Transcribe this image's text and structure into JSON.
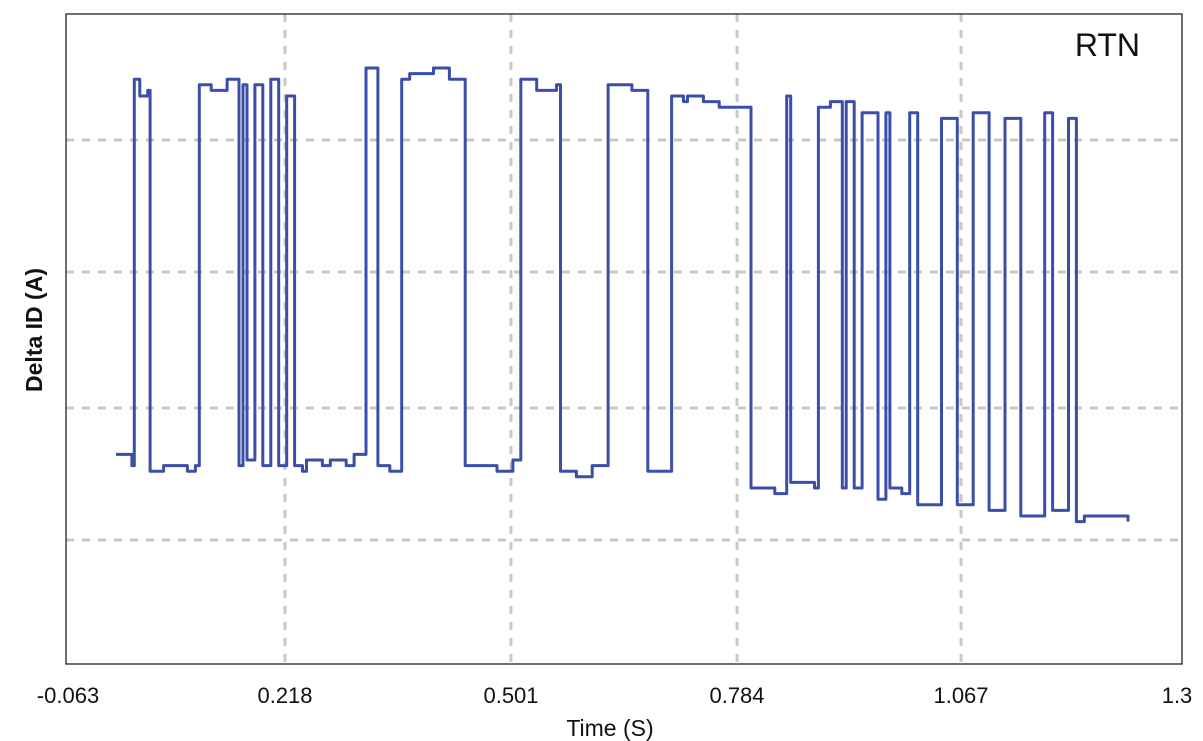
{
  "chart_data": {
    "type": "line",
    "title": "",
    "xlabel": "Time (S)",
    "ylabel": "Delta ID (A)",
    "annotation": "RTN",
    "x_tick_labels": [
      "-0.063",
      "0.218",
      "0.501",
      "0.784",
      "1.067",
      "1.3"
    ],
    "x_ticks": [
      -0.063,
      0.218,
      0.501,
      0.784,
      1.067,
      1.3
    ],
    "xlim": [
      -0.063,
      1.3
    ],
    "ylim": [
      0,
      1
    ],
    "grid": true,
    "legend": "none",
    "y_tick_labels": [],
    "series": [
      {
        "color": "#3c4fa8",
        "x": [
          0.0,
          0.02,
          0.023,
          0.03,
          0.04,
          0.043,
          0.06,
          0.09,
          0.1,
          0.105,
          0.12,
          0.14,
          0.155,
          0.16,
          0.165,
          0.175,
          0.185,
          0.195,
          0.205,
          0.215,
          0.225,
          0.235,
          0.24,
          0.26,
          0.27,
          0.29,
          0.3,
          0.315,
          0.33,
          0.345,
          0.36,
          0.37,
          0.4,
          0.42,
          0.44,
          0.48,
          0.5,
          0.51,
          0.53,
          0.555,
          0.56,
          0.58,
          0.6,
          0.62,
          0.65,
          0.67,
          0.7,
          0.715,
          0.72,
          0.74,
          0.76,
          0.8,
          0.83,
          0.845,
          0.85,
          0.88,
          0.885,
          0.9,
          0.915,
          0.92,
          0.93,
          0.94,
          0.96,
          0.97,
          0.975,
          0.99,
          1.0,
          1.01,
          1.04,
          1.06,
          1.08,
          1.1,
          1.12,
          1.14,
          1.17,
          1.18,
          1.2,
          1.21,
          1.22,
          1.25,
          1.275
        ],
        "y": [
          0.26,
          0.24,
          0.93,
          0.9,
          0.91,
          0.23,
          0.24,
          0.23,
          0.24,
          0.92,
          0.91,
          0.93,
          0.24,
          0.92,
          0.25,
          0.92,
          0.24,
          0.93,
          0.24,
          0.9,
          0.24,
          0.23,
          0.25,
          0.24,
          0.25,
          0.24,
          0.26,
          0.95,
          0.24,
          0.23,
          0.93,
          0.94,
          0.95,
          0.93,
          0.24,
          0.23,
          0.25,
          0.93,
          0.91,
          0.92,
          0.23,
          0.22,
          0.24,
          0.92,
          0.91,
          0.23,
          0.9,
          0.89,
          0.9,
          0.89,
          0.88,
          0.2,
          0.19,
          0.9,
          0.21,
          0.2,
          0.88,
          0.89,
          0.2,
          0.89,
          0.2,
          0.87,
          0.18,
          0.87,
          0.2,
          0.19,
          0.87,
          0.17,
          0.86,
          0.17,
          0.87,
          0.16,
          0.86,
          0.15,
          0.87,
          0.16,
          0.86,
          0.14,
          0.15,
          0.15,
          0.14
        ]
      }
    ]
  }
}
